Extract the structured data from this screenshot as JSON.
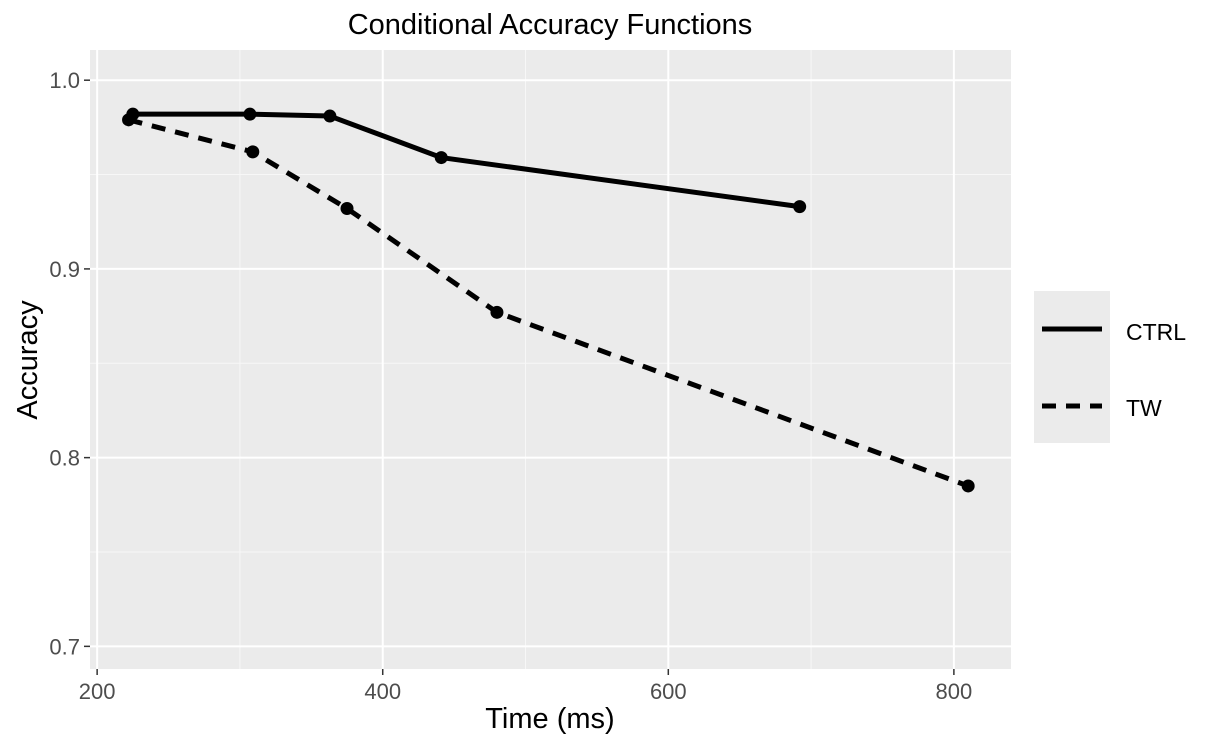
{
  "chart_data": {
    "type": "line",
    "title": "Conditional Accuracy Functions",
    "xlabel": "Time (ms)",
    "ylabel": "Accuracy",
    "xlim": [
      195,
      840
    ],
    "ylim": [
      0.688,
      1.016
    ],
    "x_ticks": [
      200,
      400,
      600,
      800
    ],
    "x_minor": [
      300,
      500,
      700
    ],
    "y_ticks": [
      0.7,
      0.8,
      0.9,
      1.0
    ],
    "y_tick_labels": [
      "0.7",
      "0.8",
      "0.9",
      "1.0"
    ],
    "y_minor": [
      0.75,
      0.85,
      0.95
    ],
    "grid": true,
    "legend_position": "right",
    "series": [
      {
        "name": "CTRL",
        "line_style": "solid",
        "x": [
          225,
          307,
          363,
          441,
          692
        ],
        "y": [
          0.982,
          0.982,
          0.981,
          0.959,
          0.933
        ]
      },
      {
        "name": "TW",
        "line_style": "dashed",
        "x": [
          222,
          309,
          375,
          480,
          810
        ],
        "y": [
          0.979,
          0.962,
          0.932,
          0.877,
          0.785
        ]
      }
    ]
  }
}
